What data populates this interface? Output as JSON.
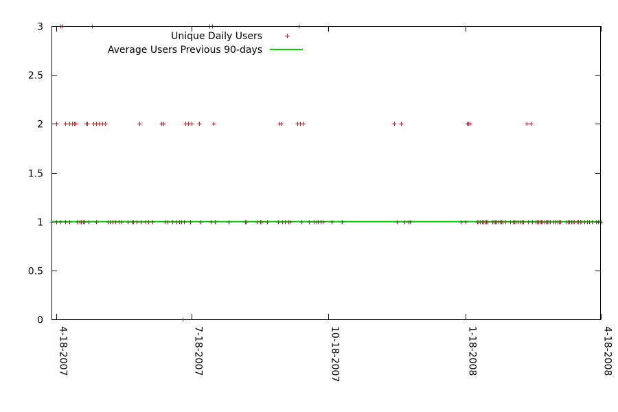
{
  "chart_data": {
    "type": "scatter",
    "title": "",
    "xlabel": "",
    "ylabel": "",
    "x_type": "date",
    "xlim": [
      "2007-04-15",
      "2008-04-18"
    ],
    "ylim": [
      0,
      3
    ],
    "yticks": [
      0,
      0.5,
      1,
      1.5,
      2,
      2.5,
      3
    ],
    "ytick_labels": [
      "0",
      "0.5",
      "1",
      "1.5",
      "2",
      "2.5",
      "3"
    ],
    "xticks": [
      "2007-04-18",
      "2007-07-18",
      "2007-10-18",
      "2008-01-18",
      "2008-04-18"
    ],
    "xtick_labels": [
      "4-18-2007",
      "7-18-2007",
      "10-18-2007",
      "1-18-2008",
      "4-18-2008"
    ],
    "grid": false,
    "legend_position": "top-center",
    "series": [
      {
        "name": "Unique Daily Users",
        "type": "scatter",
        "marker": "plus",
        "color": "#b22222",
        "points": [
          [
            "2007-04-15",
            1
          ],
          [
            "2007-04-18",
            1
          ],
          [
            "2007-04-18",
            2
          ],
          [
            "2007-04-21",
            1
          ],
          [
            "2007-04-21",
            3
          ],
          [
            "2007-04-22",
            3
          ],
          [
            "2007-04-24",
            1
          ],
          [
            "2007-04-24",
            2
          ],
          [
            "2007-04-27",
            1
          ],
          [
            "2007-04-27",
            2
          ],
          [
            "2007-04-29",
            2
          ],
          [
            "2007-04-30",
            2
          ],
          [
            "2007-05-01",
            2
          ],
          [
            "2007-05-02",
            1
          ],
          [
            "2007-05-04",
            1
          ],
          [
            "2007-05-05",
            1
          ],
          [
            "2007-05-06",
            1
          ],
          [
            "2007-05-07",
            1
          ],
          [
            "2007-05-08",
            2
          ],
          [
            "2007-05-09",
            2
          ],
          [
            "2007-05-10",
            1
          ],
          [
            "2007-05-12",
            3
          ],
          [
            "2007-05-13",
            2
          ],
          [
            "2007-05-15",
            1
          ],
          [
            "2007-05-15",
            2
          ],
          [
            "2007-05-17",
            2
          ],
          [
            "2007-05-19",
            2
          ],
          [
            "2007-05-21",
            2
          ],
          [
            "2007-05-23",
            1
          ],
          [
            "2007-05-24",
            1
          ],
          [
            "2007-05-26",
            1
          ],
          [
            "2007-05-28",
            1
          ],
          [
            "2007-05-30",
            1
          ],
          [
            "2007-06-01",
            1
          ],
          [
            "2007-06-05",
            1
          ],
          [
            "2007-06-08",
            1
          ],
          [
            "2007-06-09",
            1
          ],
          [
            "2007-06-11",
            1
          ],
          [
            "2007-06-13",
            2
          ],
          [
            "2007-06-14",
            1
          ],
          [
            "2007-06-17",
            1
          ],
          [
            "2007-06-19",
            1
          ],
          [
            "2007-06-22",
            1
          ],
          [
            "2007-06-28",
            2
          ],
          [
            "2007-06-29",
            2
          ],
          [
            "2007-06-30",
            1
          ],
          [
            "2007-07-02",
            1
          ],
          [
            "2007-07-05",
            1
          ],
          [
            "2007-07-08",
            1
          ],
          [
            "2007-07-10",
            1
          ],
          [
            "2007-07-11",
            1
          ],
          [
            "2007-07-12",
            0
          ],
          [
            "2007-07-13",
            1
          ],
          [
            "2007-07-14",
            2
          ],
          [
            "2007-07-16",
            2
          ],
          [
            "2007-07-17",
            1
          ],
          [
            "2007-07-18",
            2
          ],
          [
            "2007-07-23",
            2
          ],
          [
            "2007-07-24",
            1
          ],
          [
            "2007-07-30",
            3
          ],
          [
            "2007-07-31",
            1
          ],
          [
            "2007-08-01",
            3
          ],
          [
            "2007-08-02",
            2
          ],
          [
            "2007-08-03",
            1
          ],
          [
            "2007-08-12",
            1
          ],
          [
            "2007-08-23",
            1
          ],
          [
            "2007-08-24",
            1
          ],
          [
            "2007-08-31",
            1
          ],
          [
            "2007-09-02",
            1
          ],
          [
            "2007-09-03",
            1
          ],
          [
            "2007-09-07",
            1
          ],
          [
            "2007-09-14",
            1
          ],
          [
            "2007-09-15",
            2
          ],
          [
            "2007-09-16",
            2
          ],
          [
            "2007-09-17",
            1
          ],
          [
            "2007-09-19",
            1
          ],
          [
            "2007-09-21",
            1
          ],
          [
            "2007-09-22",
            1
          ],
          [
            "2007-09-27",
            2
          ],
          [
            "2007-09-28",
            3
          ],
          [
            "2007-09-29",
            2
          ],
          [
            "2007-09-30",
            1
          ],
          [
            "2007-10-01",
            2
          ],
          [
            "2007-10-05",
            1
          ],
          [
            "2007-10-08",
            1
          ],
          [
            "2007-10-10",
            1
          ],
          [
            "2007-10-11",
            1
          ],
          [
            "2007-10-13",
            1
          ],
          [
            "2007-10-14",
            1
          ],
          [
            "2007-10-20",
            1
          ],
          [
            "2007-10-27",
            1
          ],
          [
            "2007-12-01",
            2
          ],
          [
            "2007-12-03",
            1
          ],
          [
            "2007-12-06",
            2
          ],
          [
            "2007-12-08",
            1
          ],
          [
            "2007-12-11",
            1
          ],
          [
            "2007-12-12",
            1
          ],
          [
            "2008-01-15",
            1
          ],
          [
            "2008-01-18",
            1
          ],
          [
            "2008-01-19",
            2
          ],
          [
            "2008-01-20",
            2
          ],
          [
            "2008-01-21",
            2
          ],
          [
            "2008-01-26",
            1
          ],
          [
            "2008-01-27",
            1
          ],
          [
            "2008-01-28",
            1
          ],
          [
            "2008-01-29",
            1
          ],
          [
            "2008-01-30",
            1
          ],
          [
            "2008-01-31",
            1
          ],
          [
            "2008-02-01",
            1
          ],
          [
            "2008-02-02",
            1
          ],
          [
            "2008-02-05",
            1
          ],
          [
            "2008-02-06",
            1
          ],
          [
            "2008-02-07",
            1
          ],
          [
            "2008-02-08",
            1
          ],
          [
            "2008-02-09",
            1
          ],
          [
            "2008-02-10",
            1
          ],
          [
            "2008-02-11",
            1
          ],
          [
            "2008-02-12",
            1
          ],
          [
            "2008-02-14",
            1
          ],
          [
            "2008-02-17",
            1
          ],
          [
            "2008-02-19",
            1
          ],
          [
            "2008-02-20",
            1
          ],
          [
            "2008-02-21",
            1
          ],
          [
            "2008-02-22",
            1
          ],
          [
            "2008-02-24",
            1
          ],
          [
            "2008-02-25",
            1
          ],
          [
            "2008-02-26",
            1
          ],
          [
            "2008-02-28",
            2
          ],
          [
            "2008-02-29",
            1
          ],
          [
            "2008-03-02",
            2
          ],
          [
            "2008-03-03",
            1
          ],
          [
            "2008-03-05",
            1
          ],
          [
            "2008-03-06",
            1
          ],
          [
            "2008-03-07",
            1
          ],
          [
            "2008-03-08",
            1
          ],
          [
            "2008-03-09",
            1
          ],
          [
            "2008-03-10",
            1
          ],
          [
            "2008-03-11",
            1
          ],
          [
            "2008-03-12",
            1
          ],
          [
            "2008-03-13",
            1
          ],
          [
            "2008-03-14",
            1
          ],
          [
            "2008-03-15",
            1
          ],
          [
            "2008-03-17",
            1
          ],
          [
            "2008-03-18",
            1
          ],
          [
            "2008-03-20",
            1
          ],
          [
            "2008-03-21",
            1
          ],
          [
            "2008-03-22",
            1
          ],
          [
            "2008-03-26",
            1
          ],
          [
            "2008-03-27",
            1
          ],
          [
            "2008-03-28",
            1
          ],
          [
            "2008-03-29",
            1
          ],
          [
            "2008-03-30",
            1
          ],
          [
            "2008-03-31",
            1
          ],
          [
            "2008-04-02",
            1
          ],
          [
            "2008-04-03",
            1
          ],
          [
            "2008-04-04",
            1
          ],
          [
            "2008-04-05",
            1
          ],
          [
            "2008-04-07",
            1
          ],
          [
            "2008-04-09",
            1
          ],
          [
            "2008-04-10",
            1
          ],
          [
            "2008-04-12",
            1
          ],
          [
            "2008-04-15",
            1
          ],
          [
            "2008-04-16",
            1
          ],
          [
            "2008-04-18",
            1
          ]
        ]
      },
      {
        "name": "Average Users Previous 90-days",
        "type": "line",
        "color": "#00d000",
        "points": [
          [
            "2007-04-15",
            1
          ],
          [
            "2008-04-18",
            1
          ]
        ]
      }
    ]
  }
}
